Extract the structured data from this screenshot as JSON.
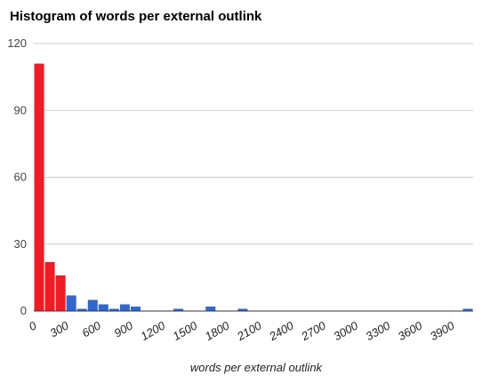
{
  "chart_data": {
    "type": "bar",
    "title": "Histogram of words per external outlink",
    "xlabel": "words per external outlink",
    "ylabel": "",
    "ylim": [
      0,
      120
    ],
    "yticks": [
      "0",
      "30",
      "60",
      "90",
      "120"
    ],
    "xlim": [
      0,
      4100
    ],
    "xticks": [
      "0",
      "300",
      "600",
      "900",
      "1200",
      "1500",
      "1800",
      "2100",
      "2400",
      "2700",
      "3000",
      "3300",
      "3600",
      "3900"
    ],
    "bin_width": 100,
    "grid": true,
    "legend": "none",
    "colors": {
      "highlight": "#ee1c25",
      "normal": "#3366cc"
    },
    "bins": [
      {
        "start": 0,
        "count": 111,
        "highlight": true
      },
      {
        "start": 100,
        "count": 22,
        "highlight": true
      },
      {
        "start": 200,
        "count": 16,
        "highlight": true
      },
      {
        "start": 300,
        "count": 7,
        "highlight": false
      },
      {
        "start": 400,
        "count": 1,
        "highlight": false
      },
      {
        "start": 500,
        "count": 5,
        "highlight": false
      },
      {
        "start": 600,
        "count": 3,
        "highlight": false
      },
      {
        "start": 700,
        "count": 1,
        "highlight": false
      },
      {
        "start": 800,
        "count": 3,
        "highlight": false
      },
      {
        "start": 900,
        "count": 2,
        "highlight": false
      },
      {
        "start": 1300,
        "count": 1,
        "highlight": false
      },
      {
        "start": 1600,
        "count": 2,
        "highlight": false
      },
      {
        "start": 1900,
        "count": 1,
        "highlight": false
      },
      {
        "start": 4000,
        "count": 1,
        "highlight": false
      }
    ]
  }
}
